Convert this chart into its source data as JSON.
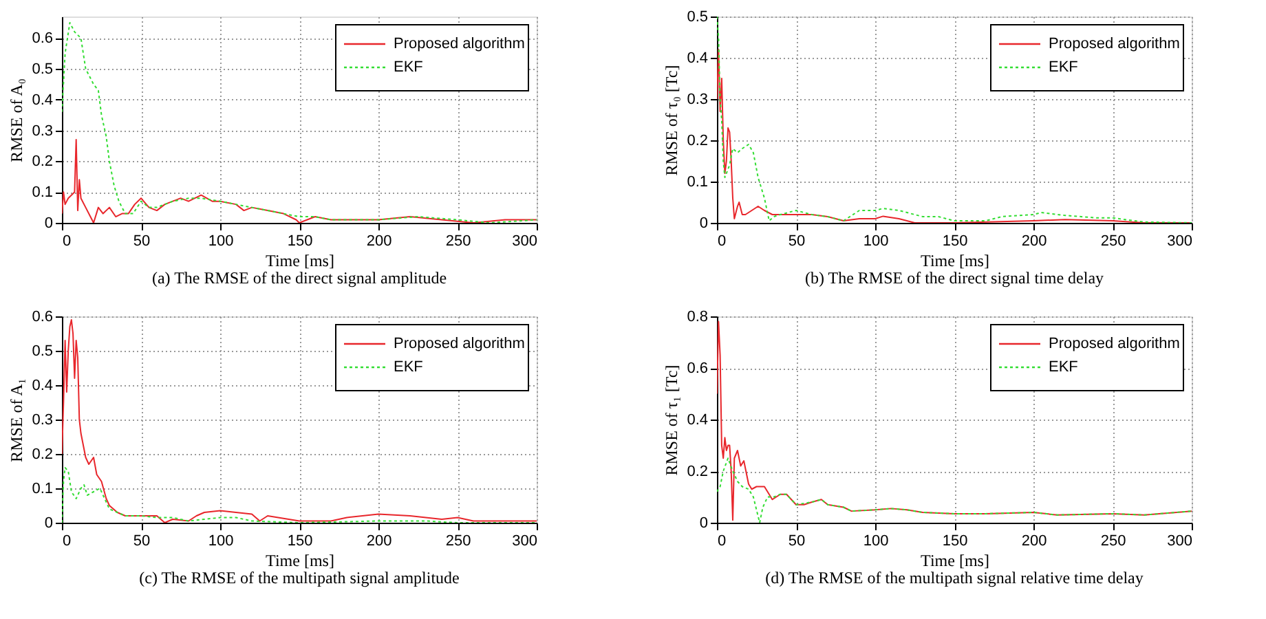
{
  "chart_data": [
    {
      "type": "line",
      "title": "(a) The RMSE of the direct signal amplitude",
      "xlabel": "Time [ms]",
      "ylabel": "RMSE of A₀",
      "xlim": [
        0,
        300
      ],
      "xticks": [
        0,
        50,
        100,
        150,
        200,
        250,
        300
      ],
      "ylim": [
        0,
        0.67
      ],
      "yticks": [
        0,
        0.1,
        0.2,
        0.3,
        0.4,
        0.5,
        0.6
      ],
      "grid": true,
      "legend": "top right",
      "series": [
        {
          "name": "Proposed algorithm",
          "color": "#e8262b",
          "line_style": "solid",
          "x": [
            0,
            1,
            2,
            4,
            6,
            8,
            9,
            10,
            11,
            12,
            15,
            18,
            20,
            23,
            26,
            30,
            34,
            38,
            42,
            46,
            50,
            55,
            60,
            65,
            70,
            75,
            80,
            88,
            95,
            100,
            110,
            115,
            120,
            130,
            140,
            148,
            150,
            160,
            170,
            180,
            200,
            220,
            240,
            260,
            280,
            300
          ],
          "values": [
            0.03,
            0.1,
            0.06,
            0.08,
            0.09,
            0.1,
            0.27,
            0.04,
            0.14,
            0.08,
            0.05,
            0.02,
            0,
            0.05,
            0.03,
            0.05,
            0.02,
            0.03,
            0.03,
            0.06,
            0.08,
            0.05,
            0.04,
            0.06,
            0.07,
            0.08,
            0.07,
            0.09,
            0.07,
            0.07,
            0.06,
            0.04,
            0.05,
            0.04,
            0.03,
            0.01,
            0,
            0.02,
            0.01,
            0.01,
            0.01,
            0.02,
            0.01,
            0,
            0.01,
            0.01
          ]
        },
        {
          "name": "EKF",
          "color": "#33dd33",
          "line_style": "dotted",
          "x": [
            0,
            2,
            5,
            8,
            12,
            15,
            20,
            23,
            25,
            28,
            30,
            33,
            36,
            40,
            45,
            50,
            55,
            60,
            70,
            80,
            88,
            100,
            110,
            120,
            130,
            140,
            150,
            160,
            170,
            200,
            225,
            250,
            270,
            300
          ],
          "values": [
            0.36,
            0.55,
            0.65,
            0.62,
            0.6,
            0.5,
            0.45,
            0.43,
            0.35,
            0.28,
            0.2,
            0.12,
            0.07,
            0.03,
            0.03,
            0.07,
            0.05,
            0.05,
            0.07,
            0.08,
            0.08,
            0.07,
            0.06,
            0.05,
            0.04,
            0.03,
            0.02,
            0.02,
            0.01,
            0.01,
            0.02,
            0.01,
            0,
            0.01
          ]
        }
      ]
    },
    {
      "type": "line",
      "title": "(b) The RMSE of the direct signal time delay",
      "xlabel": "Time [ms]",
      "ylabel": "RMSE of τ₀ [Tc]",
      "xlim": [
        0,
        300
      ],
      "xticks": [
        0,
        50,
        100,
        150,
        200,
        250,
        300
      ],
      "ylim": [
        0,
        0.5
      ],
      "yticks": [
        0,
        0.1,
        0.2,
        0.3,
        0.4,
        0.5
      ],
      "grid": true,
      "legend": "top right",
      "series": [
        {
          "name": "Proposed algorithm",
          "color": "#e8262b",
          "line_style": "solid",
          "x": [
            0,
            1,
            2,
            3,
            4,
            5,
            6,
            7,
            8,
            9,
            10,
            11,
            13,
            14,
            16,
            18,
            22,
            26,
            30,
            35,
            40,
            50,
            60,
            70,
            80,
            90,
            100,
            105,
            115,
            125,
            150,
            200,
            220,
            250,
            270,
            300
          ],
          "values": [
            0.3,
            0.42,
            0.27,
            0.35,
            0.2,
            0.12,
            0.15,
            0.23,
            0.22,
            0.15,
            0.06,
            0.01,
            0.04,
            0.05,
            0.02,
            0.02,
            0.03,
            0.04,
            0.03,
            0.02,
            0.02,
            0.02,
            0.02,
            0.015,
            0.005,
            0.01,
            0.01,
            0.016,
            0.01,
            0,
            0,
            0.005,
            0.008,
            0.005,
            0,
            0
          ]
        },
        {
          "name": "EKF",
          "color": "#33dd33",
          "line_style": "dotted",
          "x": [
            0,
            1,
            2,
            3,
            4,
            5,
            8,
            10,
            13,
            16,
            20,
            23,
            26,
            30,
            33,
            36,
            40,
            50,
            60,
            70,
            80,
            90,
            100,
            105,
            115,
            130,
            140,
            150,
            170,
            180,
            200,
            205,
            220,
            240,
            250,
            270,
            300
          ],
          "values": [
            0.5,
            0.45,
            0.3,
            0.25,
            0.15,
            0.11,
            0.14,
            0.18,
            0.17,
            0.18,
            0.19,
            0.17,
            0.11,
            0.06,
            0.005,
            0.015,
            0.02,
            0.03,
            0.02,
            0.015,
            0.005,
            0.03,
            0.03,
            0.035,
            0.03,
            0.015,
            0.015,
            0.005,
            0.005,
            0.015,
            0.02,
            0.025,
            0.018,
            0.012,
            0.012,
            0.002,
            0
          ]
        }
      ]
    },
    {
      "type": "line",
      "title": "(c) The RMSE of the multipath signal amplitude",
      "xlabel": "Time [ms]",
      "ylabel": "RMSE of A₁",
      "xlim": [
        0,
        300
      ],
      "xticks": [
        0,
        50,
        100,
        150,
        200,
        250,
        300
      ],
      "ylim": [
        0,
        0.6
      ],
      "yticks": [
        0,
        0.1,
        0.2,
        0.3,
        0.4,
        0.5,
        0.6
      ],
      "grid": true,
      "legend": "top right",
      "series": [
        {
          "name": "Proposed algorithm",
          "color": "#e8262b",
          "line_style": "solid",
          "x": [
            0,
            1,
            2,
            3,
            4,
            5,
            6,
            7,
            8,
            9,
            10,
            11,
            12,
            15,
            17,
            20,
            22,
            25,
            28,
            30,
            35,
            40,
            50,
            60,
            65,
            70,
            80,
            85,
            90,
            100,
            110,
            120,
            125,
            130,
            150,
            170,
            180,
            200,
            220,
            240,
            250,
            260,
            300
          ],
          "values": [
            0.2,
            0.35,
            0.53,
            0.38,
            0.5,
            0.57,
            0.59,
            0.55,
            0.42,
            0.53,
            0.48,
            0.3,
            0.26,
            0.19,
            0.17,
            0.19,
            0.14,
            0.12,
            0.07,
            0.05,
            0.03,
            0.02,
            0.02,
            0.02,
            0,
            0.01,
            0.005,
            0.02,
            0.03,
            0.035,
            0.03,
            0.025,
            0.005,
            0.02,
            0.005,
            0.005,
            0.015,
            0.025,
            0.02,
            0.01,
            0.015,
            0.005,
            0.005
          ]
        },
        {
          "name": "EKF",
          "color": "#33dd33",
          "line_style": "dotted",
          "x": [
            0,
            1,
            2,
            4,
            6,
            9,
            12,
            14,
            16,
            20,
            24,
            26,
            30,
            35,
            40,
            50,
            60,
            70,
            80,
            90,
            100,
            110,
            120,
            150,
            200,
            230,
            250,
            300
          ],
          "values": [
            0,
            0.12,
            0.16,
            0.15,
            0.09,
            0.07,
            0.1,
            0.11,
            0.08,
            0.09,
            0.1,
            0.08,
            0.04,
            0.03,
            0.02,
            0.02,
            0.015,
            0.015,
            0.005,
            0.01,
            0.015,
            0.015,
            0.005,
            0,
            0.005,
            0.005,
            0,
            0
          ]
        }
      ]
    },
    {
      "type": "line",
      "title": "(d) The RMSE of the multipath signal relative time delay",
      "xlabel": "Time [ms]",
      "ylabel": "RMSE of τ₁ [Tc]",
      "xlim": [
        0,
        300
      ],
      "xticks": [
        0,
        50,
        100,
        150,
        200,
        250,
        300
      ],
      "ylim": [
        0,
        0.8
      ],
      "yticks": [
        0,
        0.2,
        0.4,
        0.6,
        0.8
      ],
      "grid": true,
      "legend": "top right",
      "series": [
        {
          "name": "Proposed algorithm",
          "color": "#e8262b",
          "line_style": "solid",
          "x": [
            0,
            1,
            2,
            3,
            4,
            5,
            6,
            7,
            8,
            9,
            10,
            11,
            13,
            15,
            17,
            20,
            22,
            25,
            30,
            33,
            35,
            40,
            44,
            47,
            50,
            55,
            60,
            66,
            70,
            80,
            85,
            100,
            110,
            120,
            130,
            150,
            170,
            200,
            215,
            250,
            270,
            300
          ],
          "values": [
            0.5,
            0.78,
            0.65,
            0.3,
            0.25,
            0.33,
            0.28,
            0.3,
            0.3,
            0.2,
            0.01,
            0.25,
            0.28,
            0.22,
            0.24,
            0.15,
            0.13,
            0.14,
            0.14,
            0.11,
            0.09,
            0.11,
            0.11,
            0.09,
            0.07,
            0.07,
            0.08,
            0.09,
            0.07,
            0.06,
            0.045,
            0.05,
            0.055,
            0.05,
            0.04,
            0.035,
            0.035,
            0.04,
            0.03,
            0.035,
            0.03,
            0.045
          ]
        },
        {
          "name": "EKF",
          "color": "#33dd33",
          "line_style": "dotted",
          "x": [
            0,
            2,
            4,
            7,
            10,
            13,
            16,
            20,
            23,
            25,
            27,
            29,
            32,
            36,
            40,
            44,
            47,
            50,
            60,
            66,
            70,
            80,
            85,
            100,
            110,
            120,
            130,
            150,
            170,
            200,
            215,
            250,
            270,
            300
          ],
          "values": [
            0.12,
            0.14,
            0.2,
            0.25,
            0.2,
            0.16,
            0.14,
            0.13,
            0.1,
            0.05,
            0,
            0.06,
            0.1,
            0.1,
            0.11,
            0.11,
            0.09,
            0.07,
            0.08,
            0.09,
            0.07,
            0.06,
            0.045,
            0.05,
            0.055,
            0.05,
            0.04,
            0.035,
            0.035,
            0.04,
            0.03,
            0.035,
            0.03,
            0.045
          ]
        }
      ]
    }
  ]
}
